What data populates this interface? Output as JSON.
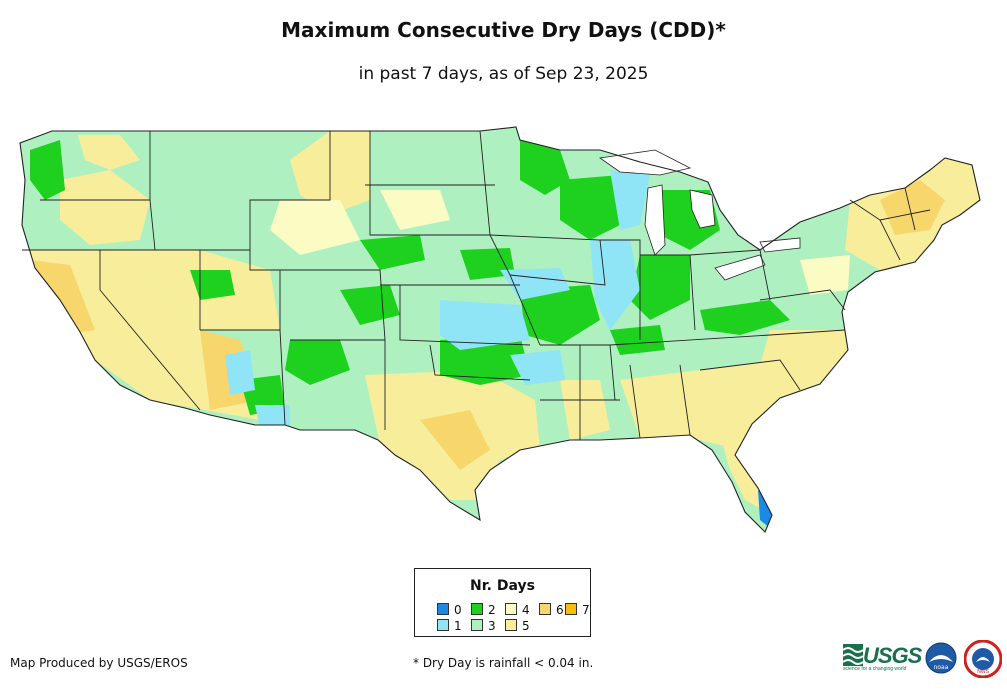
{
  "header": {
    "title": "Maximum Consecutive Dry Days (CDD)*",
    "subtitle": "in past 7 days, as of Sep 23, 2025"
  },
  "legend": {
    "title": "Nr. Days",
    "items": [
      {
        "label": "0",
        "color": "#1a8ae6"
      },
      {
        "label": "1",
        "color": "#8fe4f5"
      },
      {
        "label": "2",
        "color": "#1fd11f"
      },
      {
        "label": "3",
        "color": "#aef0c0"
      },
      {
        "label": "4",
        "color": "#fbfbc4"
      },
      {
        "label": "5",
        "color": "#f8ed9a"
      },
      {
        "label": "6",
        "color": "#f7d66c"
      },
      {
        "label": "7",
        "color": "#f7be0c"
      }
    ]
  },
  "footer": {
    "producer": "Map Produced by USGS/EROS",
    "footnote": "* Dry Day is rainfall < 0.04 in."
  },
  "logos": {
    "usgs": "USGS",
    "usgs_tagline": "science for a changing world",
    "noaa": "noaa",
    "nws": "NWS"
  }
}
